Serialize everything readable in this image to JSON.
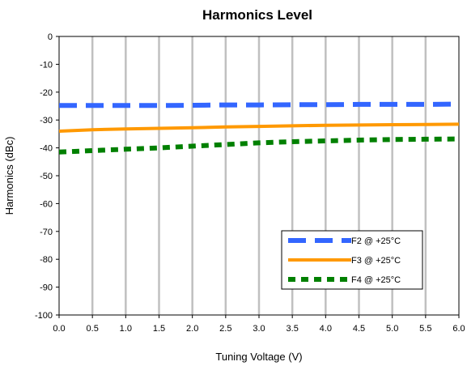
{
  "chart_data": {
    "type": "line",
    "title": "Harmonics Level",
    "xlabel": "Tuning Voltage (V)",
    "ylabel": "Harmonics (dBc)",
    "xlim": [
      0,
      6
    ],
    "ylim": [
      -100,
      0
    ],
    "xticks": [
      "0.0",
      "0.5",
      "1.0",
      "1.5",
      "2.0",
      "2.5",
      "3.0",
      "3.5",
      "4.0",
      "4.5",
      "5.0",
      "5.5",
      "6.0"
    ],
    "yticks": [
      "0",
      "-10",
      "-20",
      "-30",
      "-40",
      "-50",
      "-60",
      "-70",
      "-80",
      "-90",
      "-100"
    ],
    "grid": "vertical",
    "legend_position": "bottom-right",
    "series": [
      {
        "name": "F2 @ +25°C",
        "color": "#3366ff",
        "style": "dashed",
        "x": [
          0,
          0.5,
          1,
          1.5,
          2,
          2.5,
          3,
          3.5,
          4,
          4.5,
          5,
          5.5,
          6
        ],
        "y": [
          -24.8,
          -24.8,
          -24.8,
          -24.8,
          -24.7,
          -24.6,
          -24.6,
          -24.5,
          -24.5,
          -24.4,
          -24.4,
          -24.4,
          -24.3
        ]
      },
      {
        "name": "F3 @ +25°C",
        "color": "#ff9900",
        "style": "solid",
        "x": [
          0,
          0.5,
          1,
          1.5,
          2,
          2.5,
          3,
          3.5,
          4,
          4.5,
          5,
          5.5,
          6
        ],
        "y": [
          -34.0,
          -33.5,
          -33.2,
          -33.0,
          -32.8,
          -32.5,
          -32.3,
          -32.1,
          -31.9,
          -31.8,
          -31.7,
          -31.6,
          -31.5
        ]
      },
      {
        "name": "F4 @ +25°C",
        "color": "#008000",
        "style": "dotted",
        "x": [
          0,
          0.5,
          1,
          1.5,
          2,
          2.5,
          3,
          3.5,
          4,
          4.5,
          5,
          5.5,
          6
        ],
        "y": [
          -41.5,
          -41.0,
          -40.5,
          -40.0,
          -39.4,
          -38.8,
          -38.2,
          -37.8,
          -37.5,
          -37.2,
          -37.0,
          -36.9,
          -36.8
        ]
      }
    ]
  }
}
